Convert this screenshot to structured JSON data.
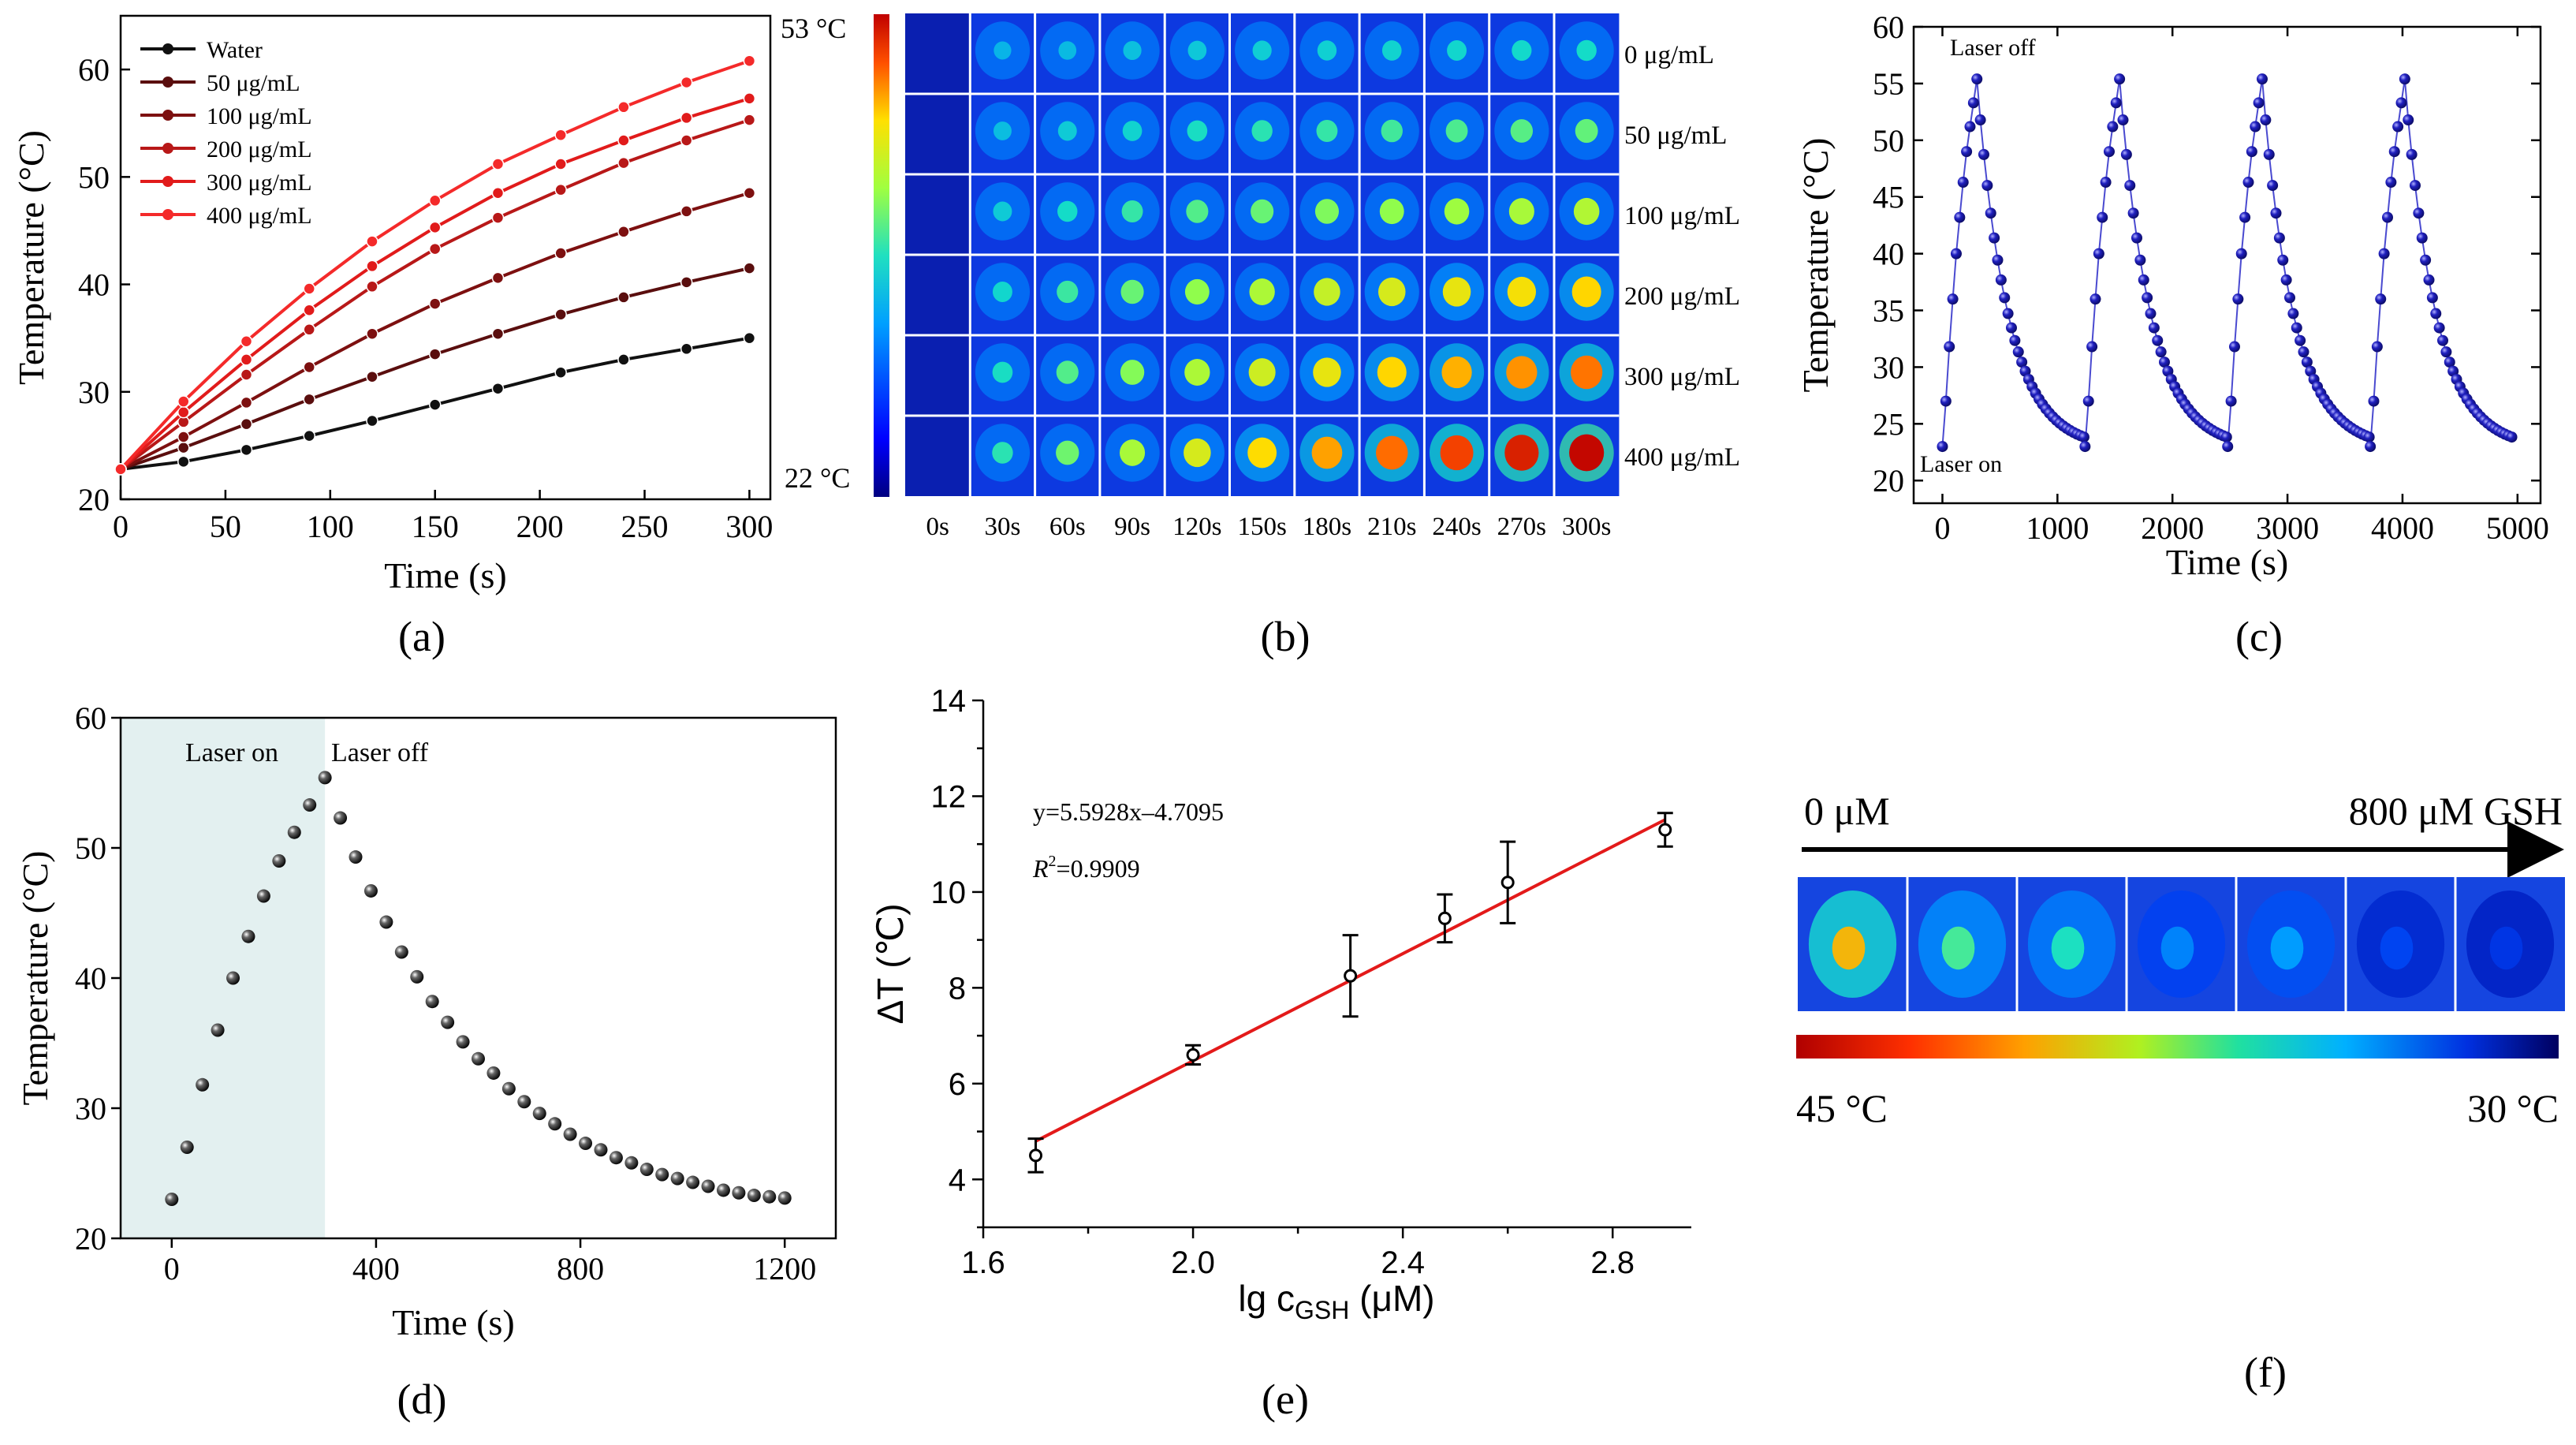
{
  "colors": {
    "water": "#111111",
    "c50": "#5a0e0e",
    "c100": "#7d1010",
    "c200": "#b81818",
    "c300": "#e11b1b",
    "c400": "#f42a2a",
    "blue_dot": "#1c1ca8",
    "fit_line": "#e31a1a",
    "laser_on_bg": "#e3f0f0"
  },
  "panels": {
    "a": "(a)",
    "b": "(b)",
    "c": "(c)",
    "d": "(d)",
    "e": "(e)",
    "f": "(f)"
  },
  "chart_data": [
    {
      "id": "a",
      "type": "line",
      "title": "",
      "xlabel": "Time (s)",
      "ylabel": "Temperature (°C)",
      "xlim": [
        0,
        310
      ],
      "ylim": [
        20,
        65
      ],
      "xticks": [
        0,
        50,
        100,
        150,
        200,
        250,
        300
      ],
      "yticks": [
        20,
        30,
        40,
        50,
        60
      ],
      "x": [
        0,
        30,
        60,
        90,
        120,
        150,
        180,
        210,
        240,
        270,
        300
      ],
      "series": [
        {
          "name": "Water",
          "values": [
            22.8,
            23.5,
            24.6,
            25.9,
            27.3,
            28.8,
            30.3,
            31.8,
            33.0,
            34.0,
            35.0
          ]
        },
        {
          "name": "50 μg/mL",
          "values": [
            22.8,
            24.8,
            27.0,
            29.3,
            31.4,
            33.5,
            35.4,
            37.2,
            38.8,
            40.2,
            41.5
          ]
        },
        {
          "name": "100 μg/mL",
          "values": [
            22.8,
            25.8,
            29.0,
            32.3,
            35.4,
            38.2,
            40.6,
            42.9,
            44.9,
            46.8,
            48.5
          ]
        },
        {
          "name": "200 μg/mL",
          "values": [
            22.8,
            27.2,
            31.6,
            35.8,
            39.8,
            43.3,
            46.2,
            48.8,
            51.3,
            53.4,
            55.3
          ]
        },
        {
          "name": "300 μg/mL",
          "values": [
            22.8,
            28.1,
            33.0,
            37.6,
            41.7,
            45.3,
            48.5,
            51.2,
            53.4,
            55.5,
            57.3
          ]
        },
        {
          "name": "400 μg/mL",
          "values": [
            22.8,
            29.1,
            34.7,
            39.6,
            44.0,
            47.8,
            51.2,
            53.9,
            56.5,
            58.8,
            60.8
          ]
        }
      ],
      "annotations": [
        "53 °C",
        "22 °C"
      ]
    },
    {
      "id": "b",
      "type": "heatmap",
      "columns": [
        "0s",
        "30s",
        "60s",
        "90s",
        "120s",
        "150s",
        "180s",
        "210s",
        "240s",
        "270s",
        "300s"
      ],
      "rows": [
        "0 μg/mL",
        "50 μg/mL",
        "100 μg/mL",
        "200 μg/mL",
        "300 μg/mL",
        "400 μg/mL"
      ],
      "intensity": [
        [
          0.0,
          0.1,
          0.12,
          0.14,
          0.16,
          0.18,
          0.19,
          0.2,
          0.21,
          0.22,
          0.23
        ],
        [
          0.0,
          0.13,
          0.17,
          0.2,
          0.24,
          0.27,
          0.29,
          0.31,
          0.33,
          0.35,
          0.37
        ],
        [
          0.0,
          0.17,
          0.23,
          0.29,
          0.34,
          0.38,
          0.42,
          0.45,
          0.48,
          0.5,
          0.52
        ],
        [
          0.0,
          0.21,
          0.3,
          0.38,
          0.45,
          0.51,
          0.56,
          0.6,
          0.64,
          0.67,
          0.7
        ],
        [
          0.0,
          0.24,
          0.34,
          0.43,
          0.51,
          0.58,
          0.64,
          0.7,
          0.75,
          0.79,
          0.83
        ],
        [
          0.0,
          0.27,
          0.39,
          0.5,
          0.6,
          0.69,
          0.77,
          0.84,
          0.9,
          0.95,
          0.99
        ]
      ]
    },
    {
      "id": "c",
      "type": "scatter",
      "xlabel": "Time (s)",
      "ylabel": "Temperature (°C)",
      "xlim": [
        -250,
        5200
      ],
      "ylim": [
        18,
        60
      ],
      "xticks": [
        0,
        1000,
        2000,
        3000,
        4000,
        5000
      ],
      "yticks": [
        20,
        25,
        30,
        35,
        40,
        45,
        50,
        55,
        60
      ],
      "cycle_period": 1240,
      "cycles": 4,
      "heat_values": [
        23.0,
        27.0,
        31.8,
        36.0,
        40.0,
        43.2,
        46.3,
        49.0,
        51.2,
        53.3,
        55.4
      ],
      "cool_peak": 55.4,
      "cool_end": 23.0,
      "cool_points": 31,
      "annotations": [
        "Laser off",
        "Laser on"
      ]
    },
    {
      "id": "d",
      "type": "scatter",
      "xlabel": "Time (s)",
      "ylabel": "Temperature (°C)",
      "xlim": [
        -100,
        1300
      ],
      "ylim": [
        20,
        60
      ],
      "xticks": [
        0,
        400,
        800,
        1200
      ],
      "yticks": [
        20,
        30,
        40,
        50,
        60
      ],
      "x_step": 30,
      "heat_values": [
        23.0,
        27.0,
        31.8,
        36.0,
        40.0,
        43.2,
        46.3,
        49.0,
        51.2,
        53.3,
        55.4
      ],
      "cool_values": [
        52.3,
        49.3,
        46.7,
        44.3,
        42.0,
        40.1,
        38.2,
        36.6,
        35.1,
        33.8,
        32.7,
        31.5,
        30.5,
        29.6,
        28.8,
        28.0,
        27.3,
        26.8,
        26.2,
        25.8,
        25.3,
        24.9,
        24.6,
        24.3,
        24.0,
        23.7,
        23.5,
        23.3,
        23.2,
        23.1
      ],
      "laser_on_range": [
        -100,
        300
      ],
      "annotations": [
        "Laser on",
        "Laser off"
      ]
    },
    {
      "id": "e",
      "type": "scatter",
      "xlabel": "lg c",
      "xlabel_sub": "GSH",
      "xlabel_unit": " (μM)",
      "ylabel": "ΔT (℃)",
      "xlim": [
        1.6,
        2.95
      ],
      "ylim": [
        3,
        14
      ],
      "xticks": [
        1.6,
        2.0,
        2.4,
        2.8
      ],
      "xtick_labels": [
        "1.6",
        "2.0",
        "2.4",
        "2.8"
      ],
      "yticks": [
        4,
        6,
        8,
        10,
        12,
        14
      ],
      "x": [
        1.7,
        2.0,
        2.3,
        2.48,
        2.6,
        2.9
      ],
      "y": [
        4.5,
        6.6,
        8.25,
        9.45,
        10.2,
        11.3
      ],
      "err": [
        0.35,
        0.2,
        0.85,
        0.5,
        0.85,
        0.35
      ],
      "fit": {
        "slope": 5.5928,
        "intercept": -4.7095,
        "x_range": [
          1.7,
          2.9
        ]
      },
      "equation": "y=5.5928x–4.7095",
      "r2_label": "R",
      "r2_value": "=0.9909"
    },
    {
      "id": "f",
      "type": "heatmap",
      "labels": [
        "0 μM",
        "800 μM GSH",
        "45 °C",
        "30 °C"
      ],
      "intensity": [
        0.85,
        0.6,
        0.55,
        0.35,
        0.4,
        0.22,
        0.18
      ]
    }
  ]
}
